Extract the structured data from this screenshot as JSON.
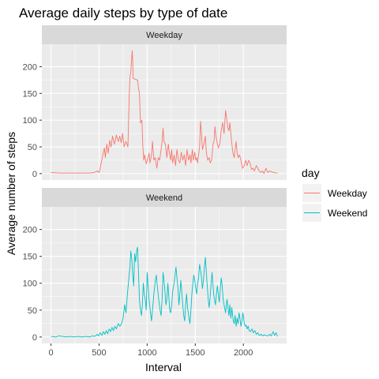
{
  "chart_data": {
    "type": "line",
    "title": "Average daily steps by type of date",
    "xlabel": "Interval",
    "ylabel": "Average number of steps",
    "xlim": [
      -95,
      2450
    ],
    "ylim": [
      -12,
      242
    ],
    "x_ticks": [
      0,
      500,
      1000,
      1500,
      2000
    ],
    "y_ticks": [
      0,
      50,
      100,
      150,
      200
    ],
    "grid": true,
    "legend": {
      "title": "day",
      "placement": "right",
      "entries": [
        "Weekday",
        "Weekend"
      ]
    },
    "facets": [
      {
        "label": "Weekday",
        "series": "Weekday",
        "color": "#F8766D",
        "points": [
          [
            0,
            2
          ],
          [
            100,
            1
          ],
          [
            200,
            1
          ],
          [
            300,
            1
          ],
          [
            400,
            1
          ],
          [
            450,
            2
          ],
          [
            480,
            5
          ],
          [
            500,
            2
          ],
          [
            520,
            18
          ],
          [
            540,
            35
          ],
          [
            555,
            48
          ],
          [
            565,
            30
          ],
          [
            580,
            55
          ],
          [
            595,
            38
          ],
          [
            610,
            62
          ],
          [
            625,
            50
          ],
          [
            640,
            70
          ],
          [
            660,
            55
          ],
          [
            680,
            72
          ],
          [
            700,
            60
          ],
          [
            715,
            70
          ],
          [
            730,
            58
          ],
          [
            745,
            75
          ],
          [
            760,
            50
          ],
          [
            780,
            60
          ],
          [
            800,
            50
          ],
          [
            815,
            150
          ],
          [
            820,
            180
          ],
          [
            830,
            190
          ],
          [
            835,
            205
          ],
          [
            840,
            218
          ],
          [
            845,
            230
          ],
          [
            850,
            208
          ],
          [
            855,
            178
          ],
          [
            900,
            175
          ],
          [
            910,
            160
          ],
          [
            920,
            150
          ],
          [
            930,
            95
          ],
          [
            945,
            100
          ],
          [
            955,
            50
          ],
          [
            965,
            25
          ],
          [
            975,
            35
          ],
          [
            990,
            18
          ],
          [
            1005,
            28
          ],
          [
            1020,
            38
          ],
          [
            1030,
            20
          ],
          [
            1045,
            35
          ],
          [
            1055,
            60
          ],
          [
            1070,
            25
          ],
          [
            1085,
            30
          ],
          [
            1100,
            10
          ],
          [
            1115,
            30
          ],
          [
            1130,
            25
          ],
          [
            1145,
            45
          ],
          [
            1155,
            60
          ],
          [
            1165,
            85
          ],
          [
            1175,
            60
          ],
          [
            1190,
            55
          ],
          [
            1205,
            30
          ],
          [
            1220,
            55
          ],
          [
            1230,
            40
          ],
          [
            1245,
            25
          ],
          [
            1255,
            45
          ],
          [
            1265,
            20
          ],
          [
            1280,
            35
          ],
          [
            1295,
            15
          ],
          [
            1310,
            45
          ],
          [
            1325,
            25
          ],
          [
            1340,
            20
          ],
          [
            1355,
            40
          ],
          [
            1370,
            25
          ],
          [
            1385,
            35
          ],
          [
            1400,
            15
          ],
          [
            1415,
            45
          ],
          [
            1430,
            25
          ],
          [
            1445,
            35
          ],
          [
            1455,
            20
          ],
          [
            1470,
            45
          ],
          [
            1480,
            25
          ],
          [
            1495,
            40
          ],
          [
            1505,
            25
          ],
          [
            1515,
            30
          ],
          [
            1525,
            20
          ],
          [
            1535,
            35
          ],
          [
            1545,
            50
          ],
          [
            1555,
            98
          ],
          [
            1565,
            75
          ],
          [
            1575,
            45
          ],
          [
            1590,
            55
          ],
          [
            1605,
            70
          ],
          [
            1615,
            40
          ],
          [
            1630,
            25
          ],
          [
            1645,
            30
          ],
          [
            1655,
            20
          ],
          [
            1670,
            25
          ],
          [
            1685,
            55
          ],
          [
            1695,
            60
          ],
          [
            1705,
            88
          ],
          [
            1715,
            70
          ],
          [
            1725,
            60
          ],
          [
            1740,
            48
          ],
          [
            1755,
            55
          ],
          [
            1770,
            80
          ],
          [
            1785,
            95
          ],
          [
            1800,
            75
          ],
          [
            1815,
            118
          ],
          [
            1825,
            105
          ],
          [
            1840,
            85
          ],
          [
            1850,
            80
          ],
          [
            1860,
            95
          ],
          [
            1875,
            65
          ],
          [
            1890,
            40
          ],
          [
            1905,
            30
          ],
          [
            1915,
            45
          ],
          [
            1925,
            60
          ],
          [
            1935,
            40
          ],
          [
            1945,
            30
          ],
          [
            1960,
            35
          ],
          [
            1975,
            25
          ],
          [
            1990,
            10
          ],
          [
            2010,
            15
          ],
          [
            2025,
            25
          ],
          [
            2040,
            15
          ],
          [
            2055,
            25
          ],
          [
            2070,
            20
          ],
          [
            2085,
            8
          ],
          [
            2100,
            10
          ],
          [
            2115,
            5
          ],
          [
            2135,
            15
          ],
          [
            2150,
            10
          ],
          [
            2165,
            5
          ],
          [
            2180,
            2
          ],
          [
            2200,
            5
          ],
          [
            2215,
            0
          ],
          [
            2235,
            10
          ],
          [
            2255,
            2
          ],
          [
            2275,
            5
          ],
          [
            2295,
            3
          ],
          [
            2320,
            2
          ],
          [
            2340,
            1
          ],
          [
            2355,
            1
          ]
        ]
      },
      {
        "label": "Weekend",
        "series": "Weekend",
        "color": "#00BFC4",
        "points": [
          [
            0,
            1
          ],
          [
            50,
            0
          ],
          [
            80,
            2
          ],
          [
            120,
            1
          ],
          [
            160,
            0
          ],
          [
            200,
            1
          ],
          [
            240,
            0
          ],
          [
            280,
            1
          ],
          [
            320,
            0
          ],
          [
            360,
            1
          ],
          [
            400,
            0
          ],
          [
            430,
            2
          ],
          [
            455,
            1
          ],
          [
            480,
            5
          ],
          [
            495,
            2
          ],
          [
            510,
            8
          ],
          [
            530,
            3
          ],
          [
            545,
            10
          ],
          [
            560,
            5
          ],
          [
            575,
            12
          ],
          [
            590,
            6
          ],
          [
            605,
            15
          ],
          [
            620,
            10
          ],
          [
            635,
            18
          ],
          [
            650,
            12
          ],
          [
            665,
            20
          ],
          [
            680,
            15
          ],
          [
            700,
            25
          ],
          [
            715,
            20
          ],
          [
            735,
            25
          ],
          [
            750,
            35
          ],
          [
            765,
            60
          ],
          [
            780,
            45
          ],
          [
            795,
            80
          ],
          [
            810,
            110
          ],
          [
            820,
            130
          ],
          [
            830,
            160
          ],
          [
            840,
            145
          ],
          [
            850,
            115
          ],
          [
            860,
            95
          ],
          [
            870,
            155
          ],
          [
            880,
            140
          ],
          [
            890,
            160
          ],
          [
            900,
            167
          ],
          [
            910,
            120
          ],
          [
            920,
            70
          ],
          [
            930,
            50
          ],
          [
            940,
            40
          ],
          [
            950,
            60
          ],
          [
            960,
            100
          ],
          [
            970,
            80
          ],
          [
            980,
            70
          ],
          [
            990,
            50
          ],
          [
            1000,
            120
          ],
          [
            1010,
            95
          ],
          [
            1020,
            70
          ],
          [
            1035,
            45
          ],
          [
            1045,
            30
          ],
          [
            1055,
            50
          ],
          [
            1070,
            80
          ],
          [
            1085,
            105
          ],
          [
            1095,
            115
          ],
          [
            1105,
            95
          ],
          [
            1120,
            70
          ],
          [
            1135,
            50
          ],
          [
            1145,
            40
          ],
          [
            1155,
            70
          ],
          [
            1165,
            120
          ],
          [
            1175,
            105
          ],
          [
            1185,
            85
          ],
          [
            1195,
            60
          ],
          [
            1205,
            70
          ],
          [
            1215,
            100
          ],
          [
            1225,
            75
          ],
          [
            1235,
            50
          ],
          [
            1245,
            45
          ],
          [
            1255,
            60
          ],
          [
            1265,
            85
          ],
          [
            1280,
            100
          ],
          [
            1290,
            115
          ],
          [
            1300,
            130
          ],
          [
            1310,
            110
          ],
          [
            1320,
            90
          ],
          [
            1330,
            60
          ],
          [
            1340,
            80
          ],
          [
            1350,
            105
          ],
          [
            1360,
            85
          ],
          [
            1370,
            60
          ],
          [
            1380,
            40
          ],
          [
            1390,
            30
          ],
          [
            1400,
            60
          ],
          [
            1410,
            80
          ],
          [
            1420,
            55
          ],
          [
            1435,
            35
          ],
          [
            1445,
            25
          ],
          [
            1455,
            50
          ],
          [
            1465,
            80
          ],
          [
            1475,
            100
          ],
          [
            1485,
            115
          ],
          [
            1495,
            105
          ],
          [
            1505,
            90
          ],
          [
            1515,
            80
          ],
          [
            1525,
            100
          ],
          [
            1535,
            110
          ],
          [
            1545,
            135
          ],
          [
            1555,
            125
          ],
          [
            1565,
            110
          ],
          [
            1575,
            90
          ],
          [
            1585,
            105
          ],
          [
            1595,
            130
          ],
          [
            1605,
            148
          ],
          [
            1615,
            120
          ],
          [
            1625,
            95
          ],
          [
            1635,
            70
          ],
          [
            1645,
            55
          ],
          [
            1655,
            75
          ],
          [
            1665,
            100
          ],
          [
            1675,
            120
          ],
          [
            1685,
            95
          ],
          [
            1695,
            75
          ],
          [
            1710,
            60
          ],
          [
            1720,
            80
          ],
          [
            1730,
            95
          ],
          [
            1740,
            80
          ],
          [
            1750,
            65
          ],
          [
            1760,
            90
          ],
          [
            1770,
            110
          ],
          [
            1780,
            95
          ],
          [
            1790,
            70
          ],
          [
            1805,
            55
          ],
          [
            1815,
            45
          ],
          [
            1830,
            70
          ],
          [
            1840,
            55
          ],
          [
            1850,
            40
          ],
          [
            1860,
            60
          ],
          [
            1870,
            35
          ],
          [
            1880,
            55
          ],
          [
            1895,
            30
          ],
          [
            1905,
            25
          ],
          [
            1915,
            40
          ],
          [
            1925,
            20
          ],
          [
            1935,
            35
          ],
          [
            1945,
            25
          ],
          [
            1955,
            45
          ],
          [
            1965,
            35
          ],
          [
            1975,
            20
          ],
          [
            1985,
            30
          ],
          [
            1995,
            45
          ],
          [
            2010,
            25
          ],
          [
            2020,
            20
          ],
          [
            2030,
            22
          ],
          [
            2040,
            15
          ],
          [
            2050,
            20
          ],
          [
            2060,
            12
          ],
          [
            2075,
            10
          ],
          [
            2090,
            15
          ],
          [
            2105,
            8
          ],
          [
            2120,
            12
          ],
          [
            2135,
            5
          ],
          [
            2150,
            8
          ],
          [
            2165,
            3
          ],
          [
            2185,
            5
          ],
          [
            2200,
            2
          ],
          [
            2215,
            4
          ],
          [
            2235,
            3
          ],
          [
            2255,
            2
          ],
          [
            2275,
            5
          ],
          [
            2290,
            2
          ],
          [
            2310,
            10
          ],
          [
            2325,
            3
          ],
          [
            2340,
            8
          ],
          [
            2355,
            1
          ]
        ]
      }
    ]
  }
}
